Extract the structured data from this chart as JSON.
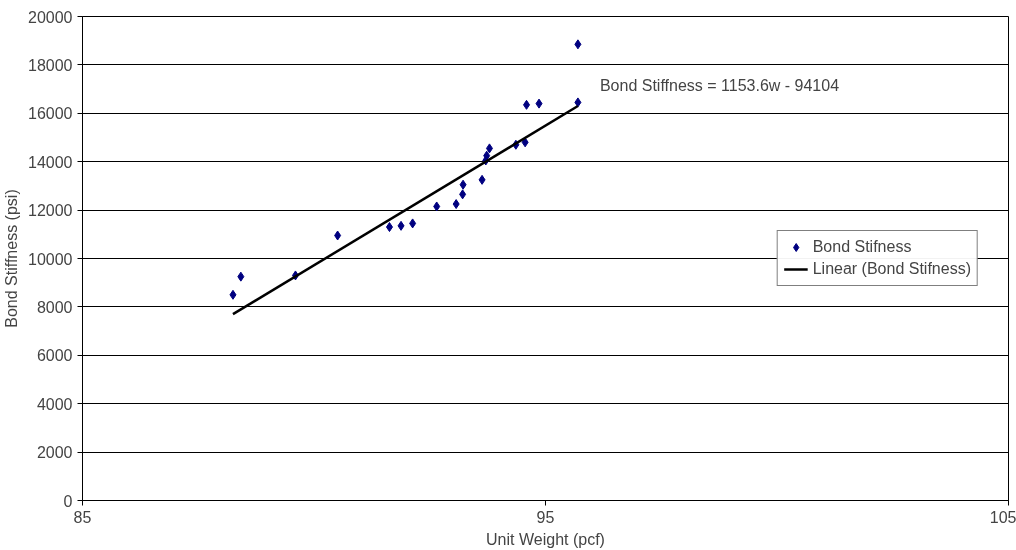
{
  "chart_data": {
    "type": "scatter",
    "xlabel": "Unit Weight (pcf)",
    "ylabel": "Bond Stiffness (psi)",
    "xlim": [
      85,
      105
    ],
    "xticks": [
      85,
      95,
      105
    ],
    "ylim": [
      0,
      20000
    ],
    "yticks": [
      0,
      2000,
      4000,
      6000,
      8000,
      10000,
      12000,
      14000,
      16000,
      18000,
      20000
    ],
    "grid": "y",
    "legend": "right",
    "annotations": [
      "Bond Stiffness = 1153.6w - 94104"
    ],
    "series": [
      {
        "name": "Bond Stifness",
        "marker": "diamond",
        "color": "#000080",
        "x": [
          88.25,
          88.42,
          89.6,
          90.51,
          91.63,
          91.88,
          92.13,
          92.65,
          93.07,
          93.21,
          93.22,
          93.63,
          93.71,
          93.73,
          93.79,
          94.36,
          94.56,
          94.59,
          94.86,
          95.7,
          95.7
        ],
        "values": [
          8500,
          9250,
          9300,
          10950,
          11300,
          11350,
          11450,
          12150,
          12250,
          12650,
          13050,
          13250,
          14050,
          14250,
          14550,
          14700,
          14800,
          16350,
          16400,
          16450,
          18850
        ]
      },
      {
        "name": "Linear (Bond Stifness)",
        "type": "line",
        "marker": "none",
        "color": "#000000",
        "x": [
          88.25,
          95.7
        ],
        "values": [
          7700,
          16300
        ]
      }
    ]
  }
}
